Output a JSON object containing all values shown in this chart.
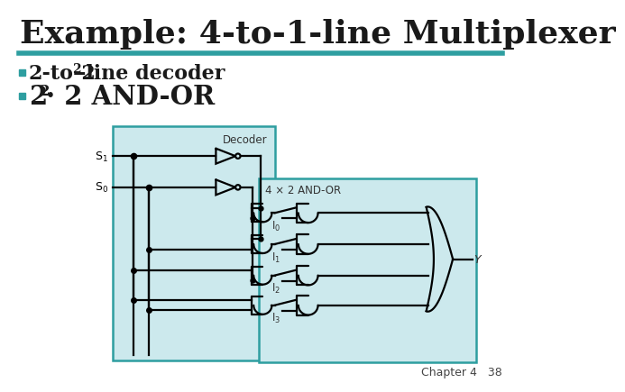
{
  "title": "Example: 4-to-1-line Multiplexer",
  "title_color": "#1a1a1a",
  "title_fontsize": 26,
  "separator_color": "#2e9ea0",
  "bullet_color": "#2e9ea0",
  "decoder_box_color": "#cce9ed",
  "andor_box_color": "#cce9ed",
  "gate_line_color": "#000000",
  "footer_text": "Chapter 4   38",
  "bg_color": "#ffffff",
  "box_edge_color": "#2e9ea0"
}
